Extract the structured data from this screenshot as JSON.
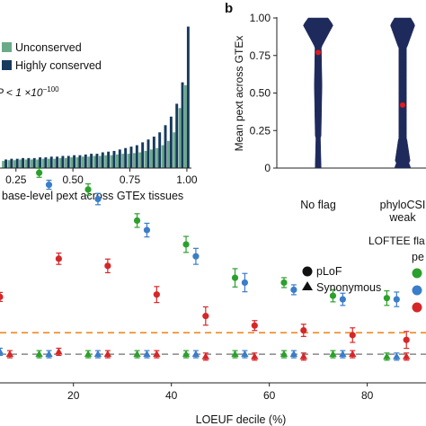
{
  "chart_data": [
    {
      "type": "bar",
      "panel_label": "",
      "xlabel": "base-level pext across GTEx tissues",
      "ylabel": "",
      "x_ticks": [
        "0.25",
        "0.50",
        "0.75",
        "1.00"
      ],
      "xlim": [
        0.18,
        1.02
      ],
      "ylim": [
        0,
        1
      ],
      "legend_position": "top-left",
      "annotation": "P < 1 ×10",
      "annotation_exponent": "−100",
      "bin_centers": [
        0.2,
        0.225,
        0.25,
        0.275,
        0.3,
        0.325,
        0.35,
        0.375,
        0.4,
        0.425,
        0.45,
        0.475,
        0.5,
        0.525,
        0.55,
        0.575,
        0.6,
        0.625,
        0.65,
        0.675,
        0.7,
        0.725,
        0.75,
        0.775,
        0.8,
        0.825,
        0.85,
        0.875,
        0.9,
        0.925,
        0.95,
        0.975,
        1.0
      ],
      "series": [
        {
          "name": "Unconserved",
          "color": "#6aaa8a",
          "values": [
            0.05,
            0.055,
            0.055,
            0.06,
            0.06,
            0.06,
            0.06,
            0.065,
            0.065,
            0.065,
            0.07,
            0.07,
            0.075,
            0.075,
            0.08,
            0.08,
            0.085,
            0.085,
            0.09,
            0.09,
            0.095,
            0.1,
            0.1,
            0.105,
            0.11,
            0.12,
            0.13,
            0.14,
            0.16,
            0.19,
            0.25,
            0.42,
            0.58
          ]
        },
        {
          "name": "Highly conserved",
          "color": "#173a5e",
          "values": [
            0.06,
            0.065,
            0.065,
            0.07,
            0.07,
            0.07,
            0.075,
            0.075,
            0.08,
            0.08,
            0.085,
            0.085,
            0.09,
            0.09,
            0.095,
            0.1,
            0.1,
            0.11,
            0.115,
            0.12,
            0.13,
            0.14,
            0.15,
            0.16,
            0.18,
            0.2,
            0.22,
            0.25,
            0.3,
            0.36,
            0.45,
            0.6,
            0.99
          ]
        }
      ]
    },
    {
      "type": "violin",
      "panel_label": "b",
      "ylabel": "Mean pext across GTEx",
      "xlabel": "LOFTEE fla",
      "ylim": [
        0,
        1
      ],
      "y_ticks": [
        "0",
        "0.25",
        "0.50",
        "0.75",
        "1.00"
      ],
      "categories": [
        {
          "label": "No flag",
          "median": 0.77
        },
        {
          "label": "phyloCSI",
          "label2": "weak",
          "median": 0.42
        }
      ],
      "body_color": "#1f2a5c",
      "median_color": "#e41a1c"
    },
    {
      "type": "scatter",
      "panel_label": "",
      "xlabel": "LOEUF decile (%)",
      "ylabel": "",
      "xlim": [
        5,
        92
      ],
      "x_ticks": [
        "20",
        "40",
        "60",
        "80"
      ],
      "ylim": [
        0,
        1
      ],
      "legend_shapes": [
        {
          "label": "pLoF",
          "shape": "circle"
        },
        {
          "label": "Synonymous",
          "shape": "triangle"
        }
      ],
      "legend_title": "pe",
      "legend_colors": [
        "#2ca02c",
        "#3a7dc9",
        "#d62728"
      ],
      "reference_lines": [
        {
          "color": "#f08a24",
          "y": 0.21
        },
        {
          "color": "#888888",
          "y": 0.12
        }
      ],
      "series": [
        {
          "color": "#2ca02c",
          "shape": "circle",
          "x": [
            13,
            23,
            33,
            43,
            53,
            63,
            73,
            84
          ],
          "y": [
            0.88,
            0.81,
            0.68,
            0.58,
            0.44,
            0.42,
            0.365,
            0.355
          ]
        },
        {
          "color": "#3a7dc9",
          "shape": "circle",
          "x": [
            15,
            25,
            35,
            45,
            55,
            65,
            75,
            86
          ],
          "y": [
            0.83,
            0.77,
            0.64,
            0.53,
            0.42,
            0.39,
            0.35,
            0.35
          ]
        },
        {
          "color": "#d62728",
          "shape": "circle",
          "x": [
            5,
            17,
            27,
            37,
            47,
            57,
            67,
            77,
            88
          ],
          "y": [
            0.36,
            0.52,
            0.49,
            0.37,
            0.28,
            0.24,
            0.22,
            0.2,
            0.18
          ]
        },
        {
          "color": "#2ca02c",
          "shape": "triangle",
          "x": [
            13,
            23,
            33,
            43,
            53,
            63,
            73,
            84
          ],
          "y": [
            0.12,
            0.12,
            0.12,
            0.12,
            0.12,
            0.12,
            0.12,
            0.11
          ]
        },
        {
          "color": "#3a7dc9",
          "shape": "triangle",
          "x": [
            5,
            15,
            25,
            35,
            45,
            55,
            65,
            75,
            86
          ],
          "y": [
            0.13,
            0.12,
            0.12,
            0.12,
            0.12,
            0.12,
            0.12,
            0.12,
            0.11
          ]
        },
        {
          "color": "#d62728",
          "shape": "triangle",
          "x": [
            7,
            17,
            27,
            37,
            47,
            57,
            67,
            77,
            88
          ],
          "y": [
            0.12,
            0.13,
            0.12,
            0.12,
            0.11,
            0.11,
            0.11,
            0.12,
            0.11
          ]
        }
      ]
    }
  ]
}
